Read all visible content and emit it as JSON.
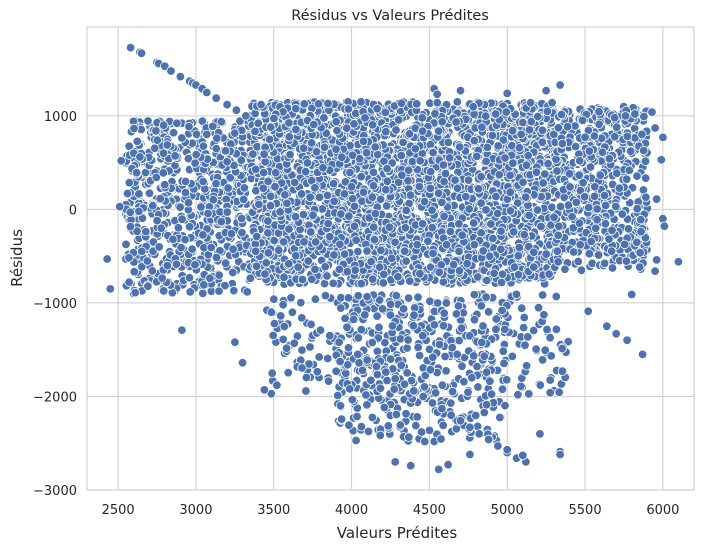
{
  "chart_data": {
    "type": "scatter",
    "title": "Résidus vs Valeurs Prédites",
    "xlabel": "Valeurs Prédites",
    "ylabel": "Résidus",
    "xlim": [
      2300,
      6200
    ],
    "ylim": [
      -3000,
      1950
    ],
    "xticks": [
      2500,
      3000,
      3500,
      4000,
      4500,
      5000,
      5500,
      6000
    ],
    "xtick_labels": [
      "2500",
      "3000",
      "3500",
      "4000",
      "4500",
      "5000",
      "5500",
      "6000"
    ],
    "yticks": [
      -3000,
      -2000,
      -1000,
      0,
      1000
    ],
    "ytick_labels": [
      "−3000",
      "−2000",
      "−1000",
      "0",
      "1000"
    ],
    "grid": true,
    "marker_color": "#4c72b0",
    "marker_edge_color": "#ffffff",
    "style": "seaborn-whitegrid",
    "series": [
      {
        "points": [
          [
            2580,
            1730
          ],
          [
            2640,
            1680
          ],
          [
            2650,
            1670
          ],
          [
            2750,
            1570
          ],
          [
            2760,
            1560
          ],
          [
            2800,
            1530
          ],
          [
            2840,
            1480
          ],
          [
            2900,
            1420
          ],
          [
            2960,
            1370
          ],
          [
            2980,
            1350
          ],
          [
            3000,
            1330
          ],
          [
            3040,
            1290
          ],
          [
            3070,
            1250
          ],
          [
            3130,
            1190
          ],
          [
            3200,
            1120
          ],
          [
            3260,
            1060
          ],
          [
            3320,
            1000
          ],
          [
            3400,
            920
          ],
          [
            3480,
            880
          ],
          [
            3500,
            -960
          ],
          [
            3560,
            -1020
          ],
          [
            3620,
            -1100
          ],
          [
            3680,
            -1160
          ],
          [
            3740,
            -1230
          ],
          [
            3800,
            -1290
          ],
          [
            3860,
            -1350
          ],
          [
            3920,
            -1420
          ],
          [
            3980,
            -1480
          ],
          [
            4040,
            -1550
          ],
          [
            4100,
            -1610
          ],
          [
            4160,
            -1680
          ],
          [
            4220,
            -1740
          ],
          [
            4280,
            -1810
          ],
          [
            4340,
            -1870
          ],
          [
            4400,
            -1940
          ],
          [
            4460,
            -2000
          ],
          [
            4520,
            -2070
          ],
          [
            4580,
            -2130
          ],
          [
            4640,
            -2200
          ],
          [
            4700,
            -2260
          ],
          [
            4760,
            -2330
          ],
          [
            4820,
            -2400
          ],
          [
            4880,
            -2460
          ],
          [
            4940,
            -2530
          ],
          [
            5000,
            -2600
          ],
          [
            5060,
            -2660
          ],
          [
            5120,
            -2700
          ],
          [
            5340,
            -2590
          ],
          [
            5340,
            -2620
          ],
          [
            5210,
            -2400
          ],
          [
            5000,
            -2570
          ],
          [
            5520,
            -1090
          ],
          [
            5640,
            -1250
          ],
          [
            5700,
            -1330
          ],
          [
            5770,
            -1400
          ],
          [
            5870,
            -1550
          ],
          [
            2430,
            -530
          ],
          [
            2450,
            -850
          ],
          [
            2510,
            30
          ],
          [
            2520,
            520
          ],
          [
            2560,
            170
          ],
          [
            2600,
            600
          ],
          [
            2640,
            560
          ],
          [
            2610,
            -890
          ],
          [
            2910,
            -1290
          ],
          [
            3250,
            -1420
          ],
          [
            3300,
            -1640
          ],
          [
            3440,
            -1930
          ],
          [
            3520,
            -1880
          ],
          [
            4530,
            1290
          ],
          [
            4700,
            1270
          ],
          [
            4550,
            1230
          ],
          [
            5000,
            1240
          ],
          [
            5340,
            1330
          ],
          [
            5250,
            1270
          ],
          [
            5950,
            870
          ],
          [
            5990,
            530
          ],
          [
            6000,
            770
          ],
          [
            5960,
            110
          ],
          [
            6000,
            -100
          ],
          [
            6010,
            -180
          ],
          [
            6100,
            -560
          ],
          [
            5960,
            -540
          ],
          [
            5950,
            -660
          ],
          [
            5800,
            -910
          ],
          [
            5930,
            1040
          ],
          [
            5820,
            1020
          ],
          [
            5690,
            980
          ],
          [
            5760,
            1000
          ],
          [
            4620,
            -2730
          ],
          [
            4560,
            -2780
          ],
          [
            4380,
            -2740
          ],
          [
            4280,
            -2700
          ],
          [
            4760,
            -2620
          ],
          [
            5100,
            -2630
          ]
        ]
      }
    ]
  }
}
